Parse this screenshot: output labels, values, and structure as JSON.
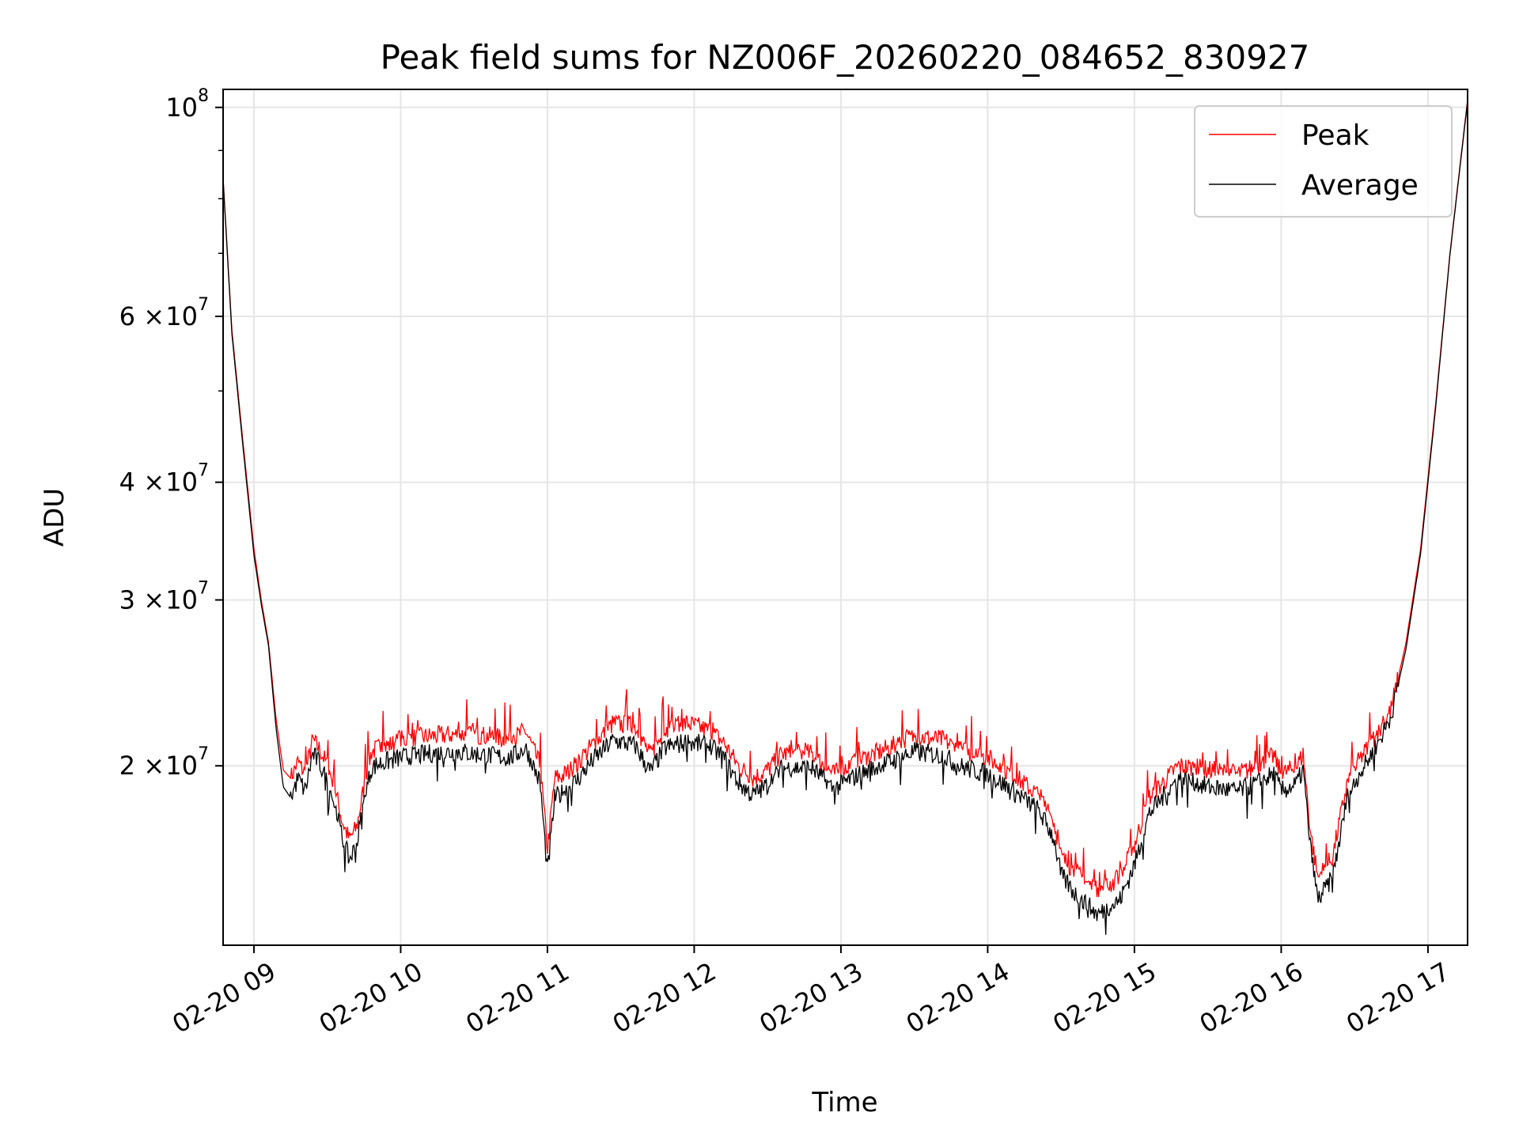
{
  "chart_data": {
    "type": "line",
    "title": "Peak field sums for NZ006F_20260220_084652_830927",
    "xlabel": "Time",
    "ylabel": "ADU",
    "y_scale": "log",
    "ylim": [
      12900000,
      104500000
    ],
    "xlim_hours": [
      8.79,
      17.27
    ],
    "x_ticks": [
      {
        "value": 9,
        "label": "02-20 09"
      },
      {
        "value": 10,
        "label": "02-20 10"
      },
      {
        "value": 11,
        "label": "02-20 11"
      },
      {
        "value": 12,
        "label": "02-20 12"
      },
      {
        "value": 13,
        "label": "02-20 13"
      },
      {
        "value": 14,
        "label": "02-20 14"
      },
      {
        "value": 15,
        "label": "02-20 15"
      },
      {
        "value": 16,
        "label": "02-20 16"
      },
      {
        "value": 17,
        "label": "02-20 17"
      }
    ],
    "y_ticks": [
      {
        "value": 20000000,
        "mantissa": "2",
        "exponent": "7"
      },
      {
        "value": 30000000,
        "mantissa": "3",
        "exponent": "7"
      },
      {
        "value": 40000000,
        "mantissa": "4",
        "exponent": "7"
      },
      {
        "value": 60000000,
        "mantissa": "6",
        "exponent": "7"
      },
      {
        "value": 100000000,
        "mantissa": "",
        "exponent": "8"
      }
    ],
    "grid": true,
    "legend_position": "top-right",
    "series": [
      {
        "name": "Peak",
        "color": "#ff0000",
        "x": [
          8.79,
          8.85,
          8.92,
          9.0,
          9.05,
          9.1,
          9.15,
          9.2,
          9.25,
          9.3,
          9.35,
          9.4,
          9.45,
          9.5,
          9.55,
          9.6,
          9.65,
          9.7,
          9.75,
          9.8,
          9.85,
          9.9,
          9.95,
          10.0,
          10.2,
          10.4,
          10.6,
          10.75,
          10.85,
          10.95,
          11.0,
          11.05,
          11.1,
          11.2,
          11.3,
          11.45,
          11.6,
          11.7,
          11.8,
          11.95,
          12.1,
          12.2,
          12.3,
          12.4,
          12.5,
          12.6,
          12.8,
          12.95,
          13.1,
          13.3,
          13.5,
          13.7,
          13.8,
          14.0,
          14.2,
          14.35,
          14.45,
          14.5,
          14.6,
          14.75,
          14.9,
          15.0,
          15.1,
          15.3,
          15.5,
          15.7,
          15.85,
          15.95,
          16.0,
          16.1,
          16.15,
          16.2,
          16.25,
          16.35,
          16.45,
          16.55,
          16.65,
          16.75,
          16.85,
          16.95,
          17.05,
          17.15,
          17.27
        ],
        "y": [
          84000000,
          58000000,
          45000000,
          34000000,
          30000000,
          27000000,
          22500000,
          19800000,
          19400000,
          20200000,
          19600000,
          21300000,
          20800000,
          20000000,
          19000000,
          17500000,
          16700000,
          17200000,
          19000000,
          20700000,
          20900000,
          21000000,
          21100000,
          21300000,
          21500000,
          21600000,
          21500000,
          21300000,
          21800000,
          20000000,
          16300000,
          19400000,
          19500000,
          20000000,
          21000000,
          22200000,
          22000000,
          20500000,
          21800000,
          22200000,
          21800000,
          21200000,
          20000000,
          19400000,
          19800000,
          20600000,
          20600000,
          19600000,
          20200000,
          20800000,
          21500000,
          21300000,
          20800000,
          20400000,
          19400000,
          18600000,
          17500000,
          16000000,
          15400000,
          14700000,
          15200000,
          16500000,
          18500000,
          20000000,
          19800000,
          19600000,
          20000000,
          20500000,
          19600000,
          19900000,
          20600000,
          17000000,
          15200000,
          16000000,
          19200000,
          20500000,
          21500000,
          23000000,
          27000000,
          34000000,
          48000000,
          70000000,
          102000000
        ]
      },
      {
        "name": "Average",
        "color": "#000000",
        "x": [
          8.79,
          8.85,
          8.92,
          9.0,
          9.05,
          9.1,
          9.15,
          9.2,
          9.25,
          9.3,
          9.35,
          9.4,
          9.45,
          9.5,
          9.55,
          9.6,
          9.65,
          9.7,
          9.75,
          9.8,
          9.85,
          9.9,
          9.95,
          10.0,
          10.2,
          10.4,
          10.6,
          10.75,
          10.85,
          10.95,
          11.0,
          11.05,
          11.1,
          11.2,
          11.3,
          11.45,
          11.6,
          11.7,
          11.8,
          11.95,
          12.1,
          12.2,
          12.3,
          12.4,
          12.5,
          12.6,
          12.8,
          12.95,
          13.1,
          13.3,
          13.5,
          13.7,
          13.8,
          14.0,
          14.2,
          14.35,
          14.45,
          14.5,
          14.6,
          14.75,
          14.9,
          15.0,
          15.1,
          15.3,
          15.5,
          15.7,
          15.85,
          15.95,
          16.0,
          16.1,
          16.15,
          16.2,
          16.25,
          16.35,
          16.45,
          16.55,
          16.65,
          16.75,
          16.85,
          16.95,
          17.05,
          17.15,
          17.27
        ],
        "y": [
          84000000,
          57500000,
          44500000,
          33500000,
          29700000,
          26800000,
          22000000,
          19000000,
          18500000,
          19400000,
          18800000,
          20600000,
          20100000,
          19200000,
          18200000,
          16800000,
          15900000,
          16500000,
          18300000,
          19900000,
          20100000,
          20200000,
          20300000,
          20400000,
          20600000,
          20700000,
          20500000,
          20400000,
          20900000,
          19200000,
          15400000,
          18500000,
          18700000,
          19300000,
          20200000,
          21300000,
          21000000,
          19700000,
          20900000,
          21200000,
          21000000,
          20400000,
          19200000,
          18600000,
          19100000,
          19900000,
          19900000,
          18900000,
          19500000,
          20100000,
          20700000,
          20500000,
          20000000,
          19600000,
          18700000,
          17900000,
          16800000,
          15300000,
          14600000,
          13900000,
          14400000,
          15700000,
          17800000,
          19400000,
          19000000,
          18800000,
          19200000,
          19600000,
          18800000,
          19100000,
          19800000,
          16300000,
          14400000,
          15200000,
          18500000,
          19800000,
          21000000,
          22600000,
          26600000,
          33600000,
          47600000,
          69800000,
          101500000
        ]
      }
    ]
  }
}
